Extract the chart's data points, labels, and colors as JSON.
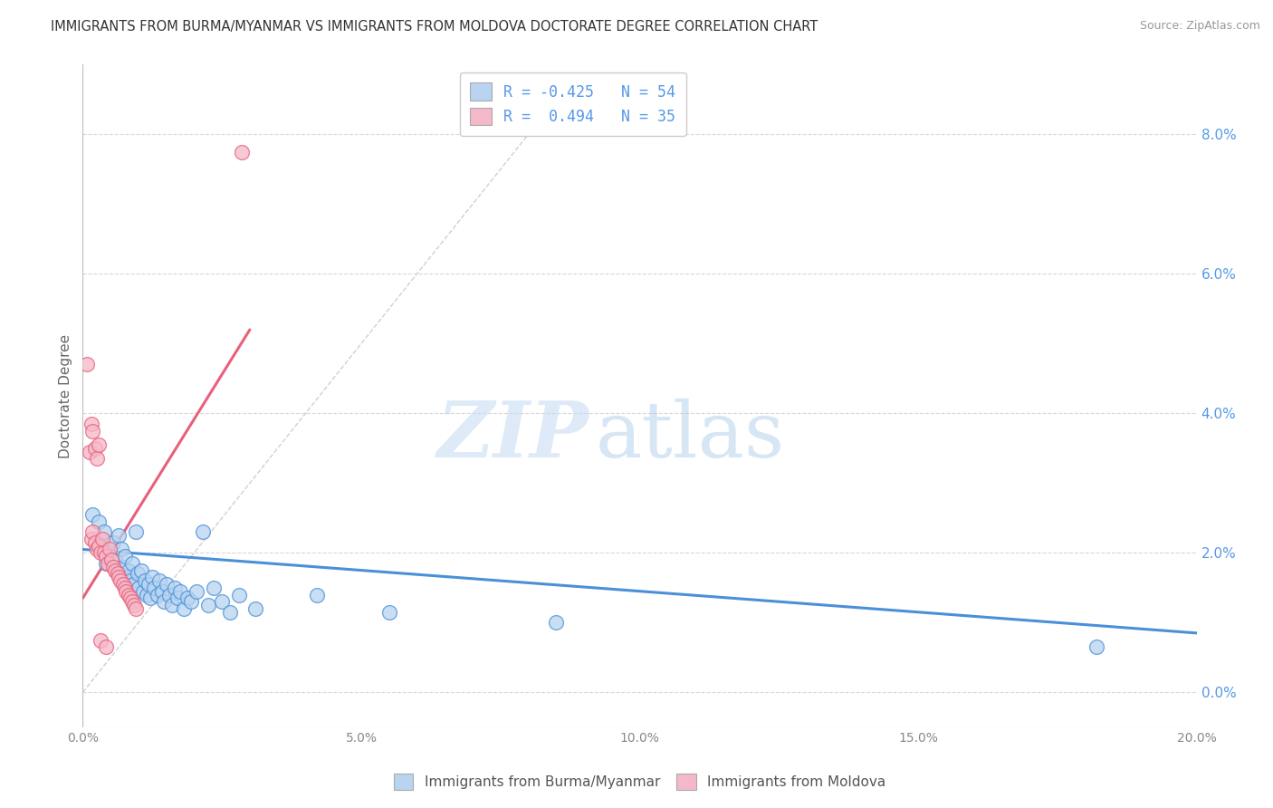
{
  "title": "IMMIGRANTS FROM BURMA/MYANMAR VS IMMIGRANTS FROM MOLDOVA DOCTORATE DEGREE CORRELATION CHART",
  "source": "Source: ZipAtlas.com",
  "ylabel": "Doctorate Degree",
  "right_ytick_vals": [
    0.0,
    2.0,
    4.0,
    6.0,
    8.0
  ],
  "xlim": [
    0.0,
    20.0
  ],
  "ylim": [
    -0.5,
    9.0
  ],
  "watermark_zip": "ZIP",
  "watermark_atlas": "atlas",
  "legend_r1": "R = -0.425",
  "legend_n1": "N = 54",
  "legend_r2": "R =  0.494",
  "legend_n2": "N = 35",
  "color_blue": "#b8d4f0",
  "color_pink": "#f5b8c8",
  "line_blue": "#4a90d9",
  "line_pink": "#e8607a",
  "line_diag": "#d0d0d0",
  "grid_color": "#d8d8d8",
  "title_color": "#333333",
  "right_axis_color": "#5599e8",
  "source_color": "#999999",
  "blue_scatter": [
    [
      0.18,
      2.55
    ],
    [
      0.28,
      2.45
    ],
    [
      0.32,
      2.1
    ],
    [
      0.38,
      2.3
    ],
    [
      0.42,
      1.85
    ],
    [
      0.48,
      2.0
    ],
    [
      0.55,
      2.15
    ],
    [
      0.58,
      1.9
    ],
    [
      0.62,
      1.7
    ],
    [
      0.65,
      2.25
    ],
    [
      0.7,
      2.05
    ],
    [
      0.72,
      1.8
    ],
    [
      0.75,
      1.95
    ],
    [
      0.78,
      1.65
    ],
    [
      0.82,
      1.75
    ],
    [
      0.85,
      1.6
    ],
    [
      0.88,
      1.85
    ],
    [
      0.9,
      1.55
    ],
    [
      0.95,
      2.3
    ],
    [
      0.98,
      1.7
    ],
    [
      1.0,
      1.5
    ],
    [
      1.05,
      1.75
    ],
    [
      1.08,
      1.45
    ],
    [
      1.12,
      1.6
    ],
    [
      1.15,
      1.4
    ],
    [
      1.18,
      1.55
    ],
    [
      1.22,
      1.35
    ],
    [
      1.25,
      1.65
    ],
    [
      1.28,
      1.5
    ],
    [
      1.35,
      1.4
    ],
    [
      1.38,
      1.6
    ],
    [
      1.42,
      1.45
    ],
    [
      1.45,
      1.3
    ],
    [
      1.5,
      1.55
    ],
    [
      1.55,
      1.4
    ],
    [
      1.6,
      1.25
    ],
    [
      1.65,
      1.5
    ],
    [
      1.7,
      1.35
    ],
    [
      1.75,
      1.45
    ],
    [
      1.82,
      1.2
    ],
    [
      1.88,
      1.35
    ],
    [
      1.95,
      1.3
    ],
    [
      2.05,
      1.45
    ],
    [
      2.15,
      2.3
    ],
    [
      2.25,
      1.25
    ],
    [
      2.35,
      1.5
    ],
    [
      2.5,
      1.3
    ],
    [
      2.65,
      1.15
    ],
    [
      2.8,
      1.4
    ],
    [
      3.1,
      1.2
    ],
    [
      4.2,
      1.4
    ],
    [
      5.5,
      1.15
    ],
    [
      8.5,
      1.0
    ],
    [
      18.2,
      0.65
    ]
  ],
  "pink_scatter": [
    [
      0.08,
      4.7
    ],
    [
      0.12,
      3.45
    ],
    [
      0.15,
      3.85
    ],
    [
      0.18,
      3.75
    ],
    [
      0.22,
      3.5
    ],
    [
      0.25,
      3.35
    ],
    [
      0.28,
      3.55
    ],
    [
      0.15,
      2.2
    ],
    [
      0.18,
      2.3
    ],
    [
      0.22,
      2.15
    ],
    [
      0.25,
      2.05
    ],
    [
      0.28,
      2.1
    ],
    [
      0.32,
      2.0
    ],
    [
      0.35,
      2.2
    ],
    [
      0.38,
      2.0
    ],
    [
      0.42,
      1.95
    ],
    [
      0.45,
      1.85
    ],
    [
      0.48,
      2.05
    ],
    [
      0.52,
      1.9
    ],
    [
      0.55,
      1.8
    ],
    [
      0.58,
      1.75
    ],
    [
      0.62,
      1.7
    ],
    [
      0.65,
      1.65
    ],
    [
      0.68,
      1.6
    ],
    [
      0.72,
      1.55
    ],
    [
      0.75,
      1.5
    ],
    [
      0.78,
      1.45
    ],
    [
      0.82,
      1.4
    ],
    [
      0.85,
      1.35
    ],
    [
      0.88,
      1.3
    ],
    [
      0.92,
      1.25
    ],
    [
      0.95,
      1.2
    ],
    [
      0.32,
      0.75
    ],
    [
      0.42,
      0.65
    ],
    [
      2.85,
      7.75
    ]
  ],
  "blue_line_x": [
    0.0,
    20.0
  ],
  "blue_line_y": [
    2.05,
    0.85
  ],
  "pink_line_x": [
    0.0,
    3.0
  ],
  "pink_line_y": [
    1.35,
    5.2
  ],
  "diag_line_x": [
    0.0,
    8.5
  ],
  "diag_line_y": [
    0.0,
    8.5
  ]
}
